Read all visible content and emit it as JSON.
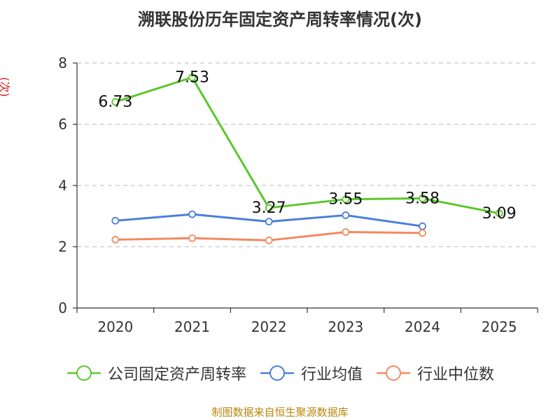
{
  "title": "溯联股份历年固定资产周转率情况(次)",
  "source": "制图数据来自恒生聚源数据库",
  "chart_data": {
    "type": "line",
    "title": "溯联股份历年固定资产周转率情况(次)",
    "ylabel": "(次)",
    "xlabel": "",
    "categories": [
      "2020",
      "2021",
      "2022",
      "2023",
      "2024",
      "2025"
    ],
    "ylim": [
      0,
      8
    ],
    "yticks": [
      0,
      2,
      4,
      6,
      8
    ],
    "grid": true,
    "legend_position": "bottom",
    "series": [
      {
        "name": "公司固定资产周转率",
        "color": "#5bc72a",
        "values": [
          6.73,
          7.53,
          3.27,
          3.55,
          3.58,
          3.09
        ],
        "labels": [
          "6.73",
          "7.53",
          "3.27",
          "3.55",
          "3.58",
          "3.09"
        ],
        "show_labels": true
      },
      {
        "name": "行业均值",
        "color": "#4a7fd8",
        "values": [
          2.85,
          3.06,
          2.82,
          3.03,
          2.67,
          null
        ],
        "show_labels": false
      },
      {
        "name": "行业中位数",
        "color": "#f4895f",
        "values": [
          2.23,
          2.28,
          2.21,
          2.48,
          2.45,
          null
        ],
        "show_labels": false
      }
    ]
  }
}
